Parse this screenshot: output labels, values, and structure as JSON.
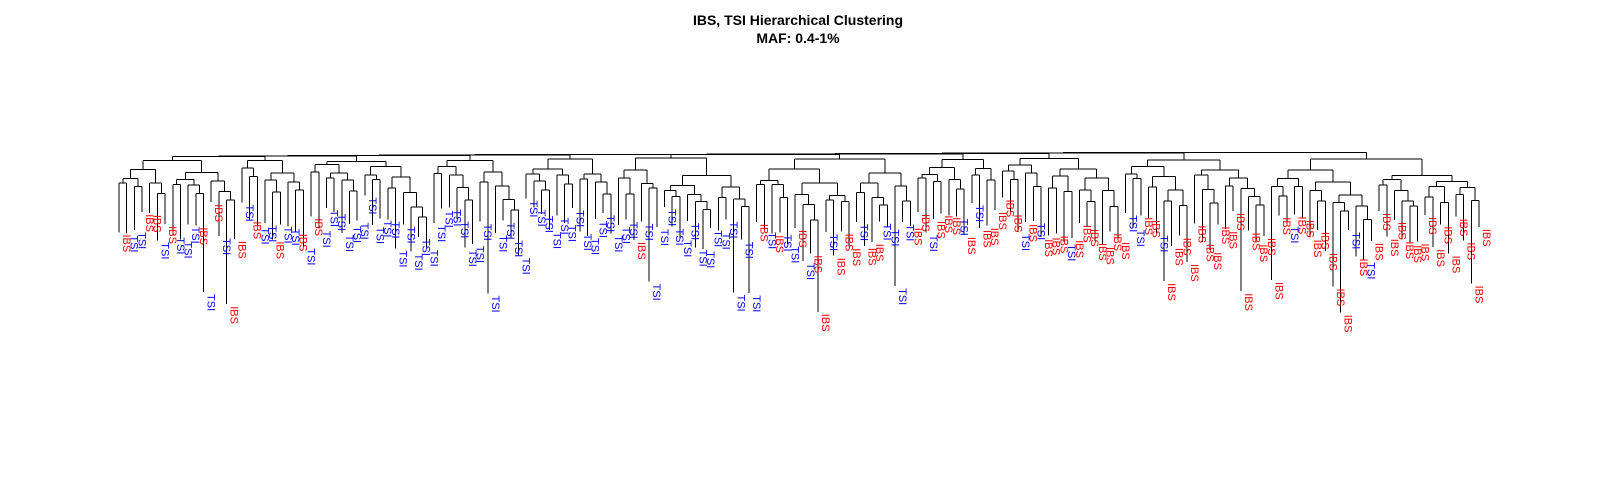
{
  "chart_data": {
    "type": "dendrogram",
    "title": "IBS, TSI Hierarchical Clustering",
    "subtitle": "MAF: 0.4-1%",
    "populations": [
      {
        "name": "IBS",
        "color": "#ff0000"
      },
      {
        "name": "TSI",
        "color": "#0000ff"
      }
    ],
    "groups": [
      {
        "id": "g1",
        "leaves": [
          "IBS",
          "TSI",
          "TSI",
          "IBS",
          "IBS",
          "TSI",
          "IBS",
          "TSI",
          "TSI",
          "TSI",
          "IBS",
          "TSI",
          "IBS",
          "TSI",
          "IBS",
          "IBS"
        ]
      },
      {
        "id": "g2",
        "leaves": [
          "TSI",
          "IBS",
          "TSI",
          "TSI",
          "IBS",
          "TSI",
          "TSI",
          "IBS",
          "TSI"
        ]
      },
      {
        "id": "g3",
        "leaves": [
          "IBS",
          "TSI",
          "TSI",
          "TSI",
          "TSI",
          "TSI",
          "TSI",
          "TSI",
          "TSI",
          "TSI",
          "TSI",
          "TSI",
          "TSI",
          "TSI",
          "TSI",
          "TSI"
        ]
      },
      {
        "id": "g4",
        "leaves": [
          "TSI",
          "TSI",
          "TSI",
          "TSI",
          "TSI",
          "TSI",
          "TSI",
          "TSI",
          "TSI",
          "TSI",
          "TSI",
          "TSI"
        ]
      },
      {
        "id": "g5",
        "leaves": [
          "TSI",
          "TSI",
          "TSI",
          "TSI",
          "TSI",
          "TSI",
          "TSI",
          "TSI",
          "TSI",
          "TSI",
          "TSI",
          "TSI"
        ]
      },
      {
        "id": "g6",
        "leaves": [
          "TSI",
          "TSI",
          "IBS",
          "TSI",
          "TSI",
          "TSI",
          "TSI",
          "TSI",
          "TSI",
          "TSI",
          "TSI",
          "TSI",
          "TSI",
          "TSI",
          "TSI",
          "TSI",
          "TSI",
          "TSI"
        ]
      },
      {
        "id": "g7",
        "leaves": [
          "IBS",
          "TSI",
          "IBS",
          "TSI",
          "TSI",
          "IBS",
          "TSI",
          "IBS",
          "IBS",
          "TSI",
          "IBS",
          "IBS",
          "IBS",
          "TSI",
          "IBS",
          "IBS",
          "TSI",
          "TSI",
          "TSI",
          "TSI",
          "IBS"
        ]
      },
      {
        "id": "g8",
        "leaves": [
          "IBS",
          "TSI",
          "IBS",
          "IBS",
          "IBS",
          "TSI",
          "IBS",
          "TSI",
          "IBS",
          "IBS",
          "IBS"
        ]
      },
      {
        "id": "g9",
        "leaves": [
          "IBS",
          "IBS",
          "TSI",
          "IBS",
          "TSI",
          "IBS",
          "IBS",
          "IBS",
          "TSI",
          "IBS",
          "IBS",
          "IBS",
          "IBS",
          "IBS",
          "IBS",
          "IBS"
        ]
      },
      {
        "id": "g10",
        "leaves": [
          "TSI",
          "TSI",
          "IBS",
          "IBS",
          "TSI",
          "IBS",
          "IBS",
          "IBS",
          "IBS",
          "IBS",
          "IBS",
          "IBS",
          "IBS",
          "IBS",
          "IBS",
          "IBS",
          "IBS",
          "IBS",
          "IBS"
        ]
      },
      {
        "id": "g11",
        "leaves": [
          "IBS",
          "IBS",
          "TSI",
          "IBS",
          "IBS",
          "IBS",
          "IBS",
          "IBS",
          "IBS",
          "IBS",
          "TSI",
          "IBS",
          "TSI",
          "IBS",
          "IBS",
          "IBS",
          "IBS",
          "IBS",
          "IBS",
          "IBS",
          "IBS",
          "IBS",
          "IBS",
          "IBS",
          "IBS",
          "IBS",
          "IBS",
          "IBS"
        ]
      }
    ]
  }
}
